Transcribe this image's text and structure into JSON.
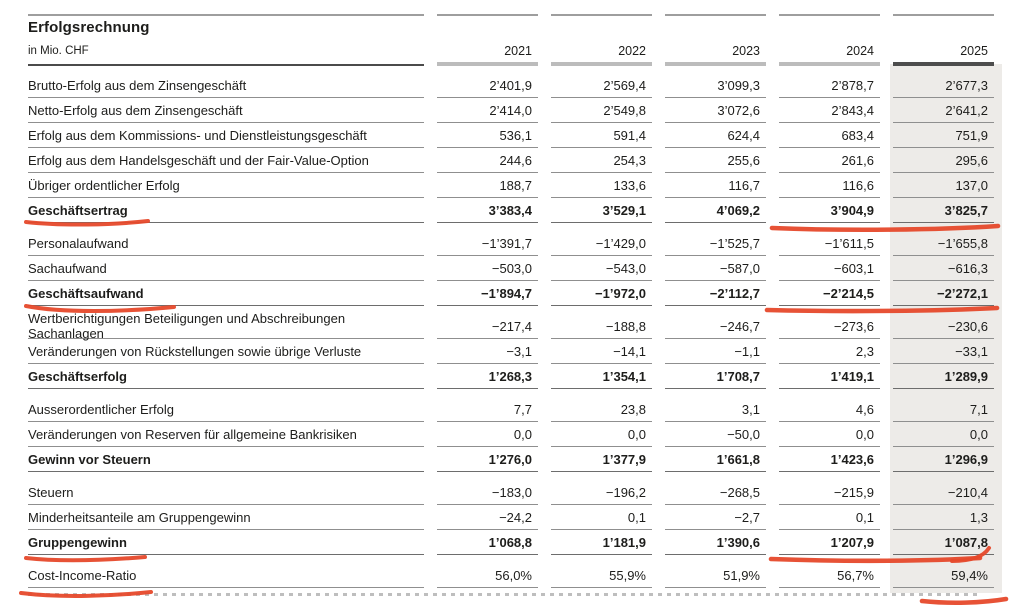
{
  "table": {
    "title": "Erfolgsrechnung",
    "unit_label": "in Mio. CHF",
    "years": [
      "2021",
      "2022",
      "2023",
      "2024",
      "2025"
    ],
    "highlight_year": "2025",
    "highlight_color": "#edebe8",
    "sections": [
      {
        "rows": [
          {
            "label": "Brutto-Erfolg aus dem Zinsengeschäft",
            "bold": false,
            "values": [
              "2’401,9",
              "2’569,4",
              "3’099,3",
              "2’878,7",
              "2’677,3"
            ]
          },
          {
            "label": "Netto-Erfolg aus dem Zinsengeschäft",
            "bold": false,
            "values": [
              "2’414,0",
              "2’549,8",
              "3’072,6",
              "2’843,4",
              "2’641,2"
            ]
          },
          {
            "label": "Erfolg aus dem Kommissions- und Dienstleistungsgeschäft",
            "bold": false,
            "values": [
              "536,1",
              "591,4",
              "624,4",
              "683,4",
              "751,9"
            ]
          },
          {
            "label": "Erfolg aus dem Handelsgeschäft und der Fair-Value-Option",
            "bold": false,
            "values": [
              "244,6",
              "254,3",
              "255,6",
              "261,6",
              "295,6"
            ]
          },
          {
            "label": "Übriger ordentlicher Erfolg",
            "bold": false,
            "values": [
              "188,7",
              "133,6",
              "116,7",
              "116,6",
              "137,0"
            ]
          },
          {
            "label": "Geschäftsertrag",
            "bold": true,
            "values": [
              "3’383,4",
              "3’529,1",
              "4’069,2",
              "3’904,9",
              "3’825,7"
            ]
          }
        ]
      },
      {
        "rows": [
          {
            "label": "Personalaufwand",
            "bold": false,
            "values": [
              "−1’391,7",
              "−1’429,0",
              "−1’525,7",
              "−1’611,5",
              "−1’655,8"
            ]
          },
          {
            "label": "Sachaufwand",
            "bold": false,
            "values": [
              "−503,0",
              "−543,0",
              "−587,0",
              "−603,1",
              "−616,3"
            ]
          },
          {
            "label": "Geschäftsaufwand",
            "bold": true,
            "values": [
              "−1’894,7",
              "−1’972,0",
              "−2’112,7",
              "−2’214,5",
              "−2’272,1"
            ]
          }
        ]
      },
      {
        "rows": [
          {
            "label": "Wertberichtigungen Beteiligungen und Abschreibungen Sachanlagen",
            "bold": false,
            "values": [
              "−217,4",
              "−188,8",
              "−246,7",
              "−273,6",
              "−230,6"
            ]
          },
          {
            "label": "Veränderungen von Rückstellungen sowie übrige Verluste",
            "bold": false,
            "values": [
              "−3,1",
              "−14,1",
              "−1,1",
              "2,3",
              "−33,1"
            ]
          },
          {
            "label": "Geschäftserfolg",
            "bold": true,
            "values": [
              "1’268,3",
              "1’354,1",
              "1’708,7",
              "1’419,1",
              "1’289,9"
            ]
          }
        ]
      },
      {
        "rows": [
          {
            "label": "Ausserordentlicher Erfolg",
            "bold": false,
            "values": [
              "7,7",
              "23,8",
              "3,1",
              "4,6",
              "7,1"
            ]
          },
          {
            "label": "Veränderungen von Reserven für allgemeine Bankrisiken",
            "bold": false,
            "values": [
              "0,0",
              "0,0",
              "−50,0",
              "0,0",
              "0,0"
            ]
          },
          {
            "label": "Gewinn vor Steuern",
            "bold": true,
            "values": [
              "1’276,0",
              "1’377,9",
              "1’661,8",
              "1’423,6",
              "1’296,9"
            ]
          }
        ]
      },
      {
        "rows": [
          {
            "label": "Steuern",
            "bold": false,
            "values": [
              "−183,0",
              "−196,2",
              "−268,5",
              "−215,9",
              "−210,4"
            ]
          },
          {
            "label": "Minderheitsanteile am Gruppengewinn",
            "bold": false,
            "values": [
              "−24,2",
              "0,1",
              "−2,7",
              "0,1",
              "1,3"
            ]
          },
          {
            "label": "Gruppengewinn",
            "bold": true,
            "values": [
              "1’068,8",
              "1’181,9",
              "1’390,6",
              "1’207,9",
              "1’087,8"
            ]
          }
        ]
      },
      {
        "rows": [
          {
            "label": "Cost-Income-Ratio",
            "bold": false,
            "values": [
              "56,0%",
              "55,9%",
              "51,9%",
              "56,7%",
              "59,4%"
            ]
          }
        ]
      }
    ]
  },
  "annotations": {
    "color": "#e6492b",
    "marks": [
      {
        "target": "Geschäftsertrag label underline"
      },
      {
        "target": "Geschäftsertrag 2024–2025 values underline"
      },
      {
        "target": "Geschäftsaufwand label underline"
      },
      {
        "target": "Geschäftsaufwand 2024–2025 values underline"
      },
      {
        "target": "Gruppengewinn label underline"
      },
      {
        "target": "Gruppengewinn 2024–2025 values underline"
      },
      {
        "target": "Cost-Income-Ratio label underline"
      },
      {
        "target": "Cost-Income-Ratio 2025 value underline"
      }
    ]
  }
}
